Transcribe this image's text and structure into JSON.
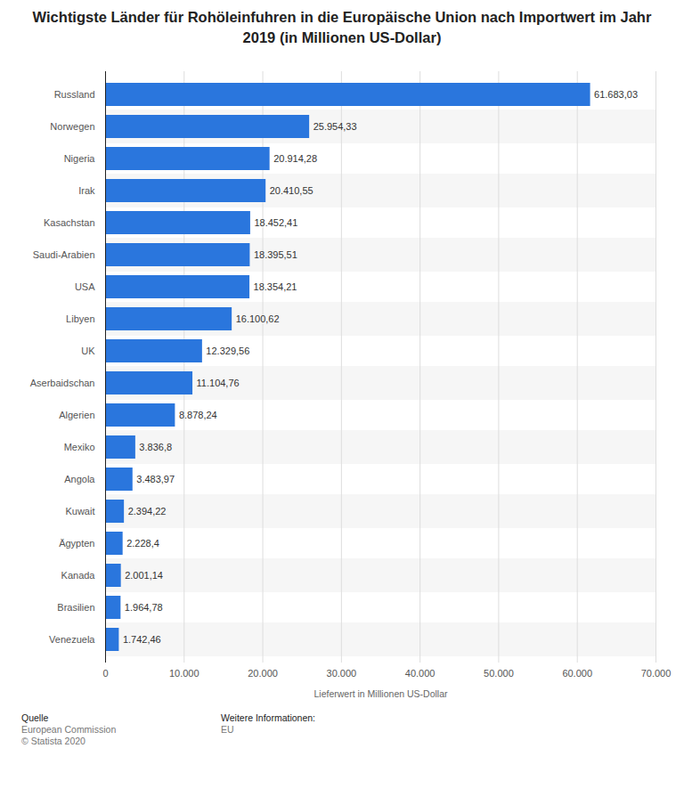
{
  "chart_data": {
    "type": "bar",
    "orientation": "horizontal",
    "title": "Wichtigste Länder für Rohöleinfuhren in die Europäische Union nach Importwert im Jahr 2019 (in Millionen US-Dollar)",
    "x_label": "Lieferwert in Millionen US-Dollar",
    "categories": [
      "Russland",
      "Norwegen",
      "Nigeria",
      "Irak",
      "Kasachstan",
      "Saudi-Arabien",
      "USA",
      "Libyen",
      "UK",
      "Aserbaidschan",
      "Algerien",
      "Mexiko",
      "Angola",
      "Kuwait",
      "Ägypten",
      "Kanada",
      "Brasilien",
      "Venezuela"
    ],
    "values": [
      61683.03,
      25954.33,
      20914.28,
      20410.55,
      18452.41,
      18395.51,
      18354.21,
      16100.62,
      12329.56,
      11104.76,
      8878.24,
      3836.8,
      3483.97,
      2394.22,
      2228.4,
      2001.14,
      1964.78,
      1742.46
    ],
    "value_labels": [
      "61.683,03",
      "25.954,33",
      "20.914,28",
      "20.410,55",
      "18.452,41",
      "18.395,51",
      "18.354,21",
      "16.100,62",
      "12.329,56",
      "11.104,76",
      "8.878,24",
      "3.836,8",
      "3.483,97",
      "2.394,22",
      "2.228,4",
      "2.001,14",
      "1.964,78",
      "1.742,46"
    ],
    "data_labels": true,
    "color": "#2a76dd",
    "xlim": [
      0,
      70000
    ],
    "xticks": [
      0,
      {
        "value": 10000,
        "label": "10.000"
      },
      {
        "value": 20000,
        "label": "20.000"
      },
      {
        "value": 30000,
        "label": "30.000"
      },
      {
        "value": 40000,
        "label": "40.000"
      },
      {
        "value": 50000,
        "label": "50.000"
      },
      {
        "value": 60000,
        "label": "60.000"
      },
      {
        "value": 70000,
        "label": "70.000"
      }
    ],
    "grid": true,
    "footer": {
      "left": {
        "heading": "Quelle",
        "lines": [
          "European Commission",
          "© Statista 2020"
        ]
      },
      "right": {
        "heading": "Weitere Informationen:",
        "lines": [
          "EU"
        ]
      }
    }
  }
}
